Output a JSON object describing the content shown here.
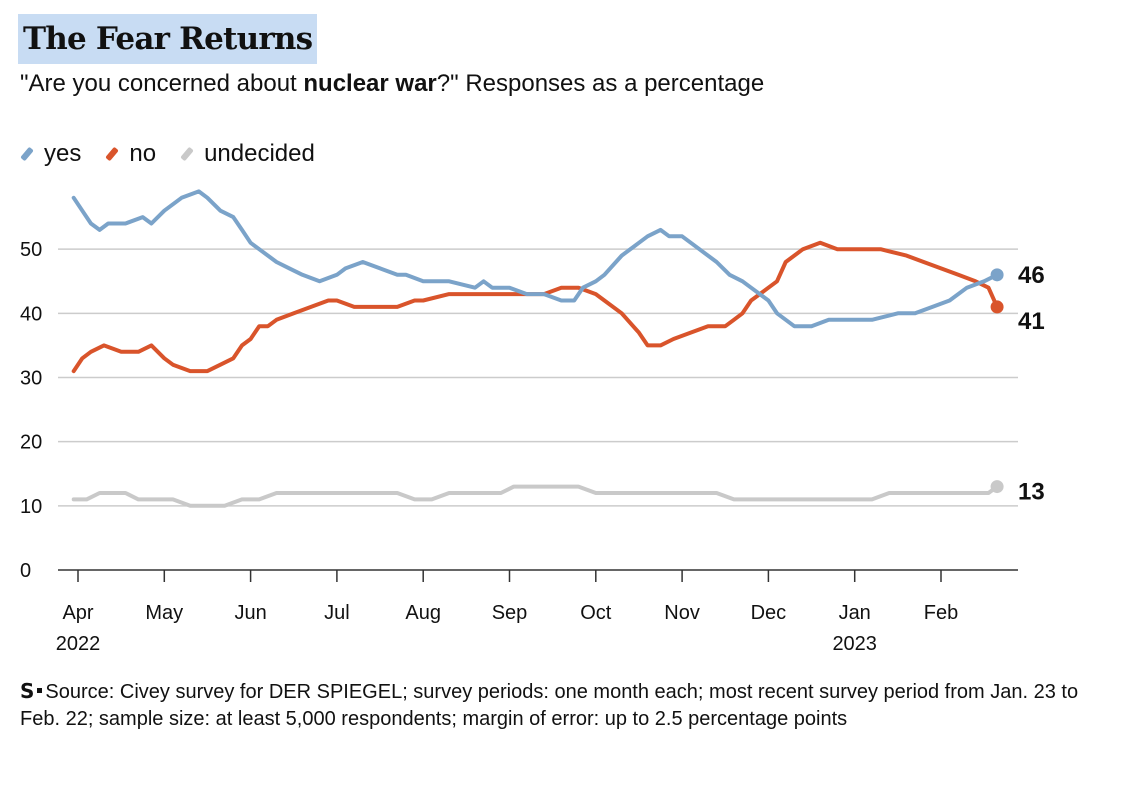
{
  "header": {
    "title": "The Fear Returns",
    "subtitle_before": "\"Are you concerned about ",
    "subtitle_bold": "nuclear war",
    "subtitle_after": "?\" Responses as a percentage"
  },
  "footer": {
    "logo": "S",
    "source": "Source: Civey survey for DER SPIEGEL; survey periods: one month each; most recent survey period from Jan. 23 to Feb. 22; sample size: at least 5,000 respondents; margin of error: up to 2.5 percentage points"
  },
  "colors": {
    "yes": "#7ba3c9",
    "no": "#d9542b",
    "undecided": "#c9c9c9",
    "grid": "#cccccc",
    "axis": "#333333"
  },
  "chart_data": {
    "type": "line",
    "title": "The Fear Returns",
    "ylabel": "",
    "xlabel": "",
    "ylim": [
      0,
      60
    ],
    "xlim": [
      -0.05,
      10.65
    ],
    "yticks": [
      0,
      10,
      20,
      30,
      40,
      50
    ],
    "xticks": [
      {
        "x": 0,
        "label": "Apr",
        "year": "2022"
      },
      {
        "x": 1,
        "label": "May",
        "year": ""
      },
      {
        "x": 2,
        "label": "Jun",
        "year": ""
      },
      {
        "x": 3,
        "label": "Jul",
        "year": ""
      },
      {
        "x": 4,
        "label": "Aug",
        "year": ""
      },
      {
        "x": 5,
        "label": "Sep",
        "year": ""
      },
      {
        "x": 6,
        "label": "Oct",
        "year": ""
      },
      {
        "x": 7,
        "label": "Nov",
        "year": ""
      },
      {
        "x": 8,
        "label": "Dec",
        "year": ""
      },
      {
        "x": 9,
        "label": "Jan",
        "year": "2023"
      },
      {
        "x": 10,
        "label": "Feb",
        "year": ""
      }
    ],
    "series": [
      {
        "name": "yes",
        "color": "#7ba3c9",
        "end_label": "46",
        "x": [
          -0.05,
          0.05,
          0.15,
          0.25,
          0.35,
          0.55,
          0.75,
          0.85,
          1.0,
          1.2,
          1.4,
          1.5,
          1.65,
          1.8,
          1.9,
          2.0,
          2.1,
          2.2,
          2.3,
          2.45,
          2.6,
          2.8,
          3.0,
          3.1,
          3.3,
          3.5,
          3.7,
          3.8,
          4.0,
          4.3,
          4.6,
          4.7,
          4.8,
          5.0,
          5.2,
          5.4,
          5.6,
          5.75,
          5.85,
          6.0,
          6.1,
          6.3,
          6.5,
          6.6,
          6.75,
          6.85,
          7.0,
          7.2,
          7.4,
          7.55,
          7.7,
          7.8,
          7.9,
          8.0,
          8.1,
          8.3,
          8.5,
          8.7,
          9.0,
          9.2,
          9.5,
          9.7,
          9.9,
          10.1,
          10.3,
          10.5,
          10.65
        ],
        "values": [
          58,
          56,
          54,
          53,
          54,
          54,
          55,
          54,
          56,
          58,
          59,
          58,
          56,
          55,
          53,
          51,
          50,
          49,
          48,
          47,
          46,
          45,
          46,
          47,
          48,
          47,
          46,
          46,
          45,
          45,
          44,
          45,
          44,
          44,
          43,
          43,
          42,
          42,
          44,
          45,
          46,
          49,
          51,
          52,
          53,
          52,
          52,
          50,
          48,
          46,
          45,
          44,
          43,
          42,
          40,
          38,
          38,
          39,
          39,
          39,
          40,
          40,
          41,
          42,
          44,
          45,
          46
        ]
      },
      {
        "name": "no",
        "color": "#d9542b",
        "end_label": "41",
        "x": [
          -0.05,
          0.05,
          0.15,
          0.3,
          0.5,
          0.7,
          0.85,
          1.0,
          1.1,
          1.3,
          1.5,
          1.65,
          1.8,
          1.9,
          2.0,
          2.1,
          2.2,
          2.3,
          2.5,
          2.7,
          2.9,
          3.0,
          3.2,
          3.5,
          3.7,
          3.9,
          4.0,
          4.3,
          4.6,
          4.8,
          5.0,
          5.2,
          5.4,
          5.6,
          5.8,
          6.0,
          6.1,
          6.3,
          6.5,
          6.6,
          6.75,
          6.9,
          7.1,
          7.3,
          7.5,
          7.6,
          7.7,
          7.8,
          7.9,
          8.0,
          8.1,
          8.2,
          8.4,
          8.6,
          8.8,
          9.0,
          9.3,
          9.6,
          9.8,
          10.0,
          10.2,
          10.4,
          10.55,
          10.65
        ],
        "values": [
          31,
          33,
          34,
          35,
          34,
          34,
          35,
          33,
          32,
          31,
          31,
          32,
          33,
          35,
          36,
          38,
          38,
          39,
          40,
          41,
          42,
          42,
          41,
          41,
          41,
          42,
          42,
          43,
          43,
          43,
          43,
          43,
          43,
          44,
          44,
          43,
          42,
          40,
          37,
          35,
          35,
          36,
          37,
          38,
          38,
          39,
          40,
          42,
          43,
          44,
          45,
          48,
          50,
          51,
          50,
          50,
          50,
          49,
          48,
          47,
          46,
          45,
          44,
          41
        ]
      },
      {
        "name": "undecided",
        "color": "#c9c9c9",
        "end_label": "13",
        "x": [
          -0.05,
          0.1,
          0.25,
          0.4,
          0.55,
          0.7,
          0.9,
          1.1,
          1.3,
          1.5,
          1.7,
          1.9,
          2.1,
          2.3,
          2.5,
          2.7,
          2.9,
          3.1,
          3.3,
          3.5,
          3.7,
          3.9,
          4.1,
          4.3,
          4.5,
          4.7,
          4.9,
          5.05,
          5.2,
          5.4,
          5.6,
          5.8,
          6.0,
          6.2,
          6.4,
          6.6,
          6.8,
          7.0,
          7.2,
          7.4,
          7.6,
          7.8,
          8.0,
          8.2,
          8.4,
          8.6,
          8.8,
          9.0,
          9.2,
          9.4,
          9.6,
          9.8,
          10.0,
          10.2,
          10.4,
          10.55,
          10.65
        ],
        "values": [
          11,
          11,
          12,
          12,
          12,
          11,
          11,
          11,
          10,
          10,
          10,
          11,
          11,
          12,
          12,
          12,
          12,
          12,
          12,
          12,
          12,
          11,
          11,
          12,
          12,
          12,
          12,
          13,
          13,
          13,
          13,
          13,
          12,
          12,
          12,
          12,
          12,
          12,
          12,
          12,
          11,
          11,
          11,
          11,
          11,
          11,
          11,
          11,
          11,
          12,
          12,
          12,
          12,
          12,
          12,
          12,
          13
        ]
      }
    ]
  }
}
